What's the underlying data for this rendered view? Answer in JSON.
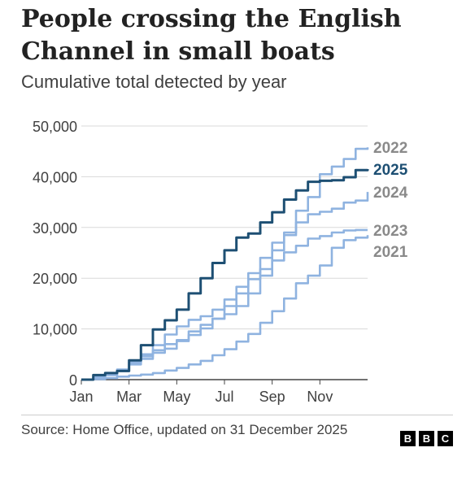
{
  "title": "People crossing the English Channel in small boats",
  "subtitle": "Cumulative total detected by year",
  "source": "Source: Home Office, updated on 31 December 2025",
  "logo": [
    "B",
    "B",
    "C"
  ],
  "colors": {
    "highlight": "#1d4f73",
    "other": "#8fb3e0",
    "other_label": "#8a8a8a",
    "grid": "#d9d9d9",
    "axis": "#444444"
  },
  "chart_data": {
    "type": "line",
    "title": "People crossing the English Channel in small boats",
    "subtitle": "Cumulative total detected by year",
    "xlabel": "",
    "ylabel": "",
    "x_ticks": [
      "Jan",
      "Mar",
      "May",
      "Jul",
      "Sep",
      "Nov"
    ],
    "y_ticks": [
      "0",
      "10,000",
      "20,000",
      "30,000",
      "40,000",
      "50,000"
    ],
    "ylim": [
      0,
      50000
    ],
    "xlim": [
      0,
      12
    ],
    "grid": true,
    "legend": "direct labels at line ends",
    "series": [
      {
        "name": "2021",
        "highlight": false,
        "x": [
          0,
          0.5,
          1,
          1.5,
          2,
          2.5,
          3,
          3.5,
          4,
          4.5,
          5,
          5.5,
          6,
          6.5,
          7,
          7.5,
          8,
          8.5,
          9,
          9.5,
          10,
          10.5,
          11,
          11.5,
          12
        ],
        "y": [
          0,
          100,
          300,
          600,
          800,
          1000,
          1300,
          1800,
          2300,
          3000,
          3700,
          4800,
          6000,
          7500,
          9000,
          11200,
          13500,
          16000,
          19000,
          20500,
          22500,
          26000,
          27500,
          28000,
          28500
        ]
      },
      {
        "name": "2022",
        "highlight": false,
        "x": [
          0,
          0.5,
          1,
          1.5,
          2,
          2.5,
          3,
          3.5,
          4,
          4.5,
          5,
          5.5,
          6,
          6.5,
          7,
          7.5,
          8,
          8.5,
          9,
          9.5,
          10,
          10.5,
          11,
          11.5,
          12
        ],
        "y": [
          0,
          600,
          1300,
          2000,
          3500,
          4600,
          5300,
          6100,
          7600,
          9500,
          10800,
          12000,
          12900,
          14500,
          17000,
          20500,
          25500,
          28500,
          33300,
          36000,
          40500,
          42000,
          43500,
          45500,
          45800
        ]
      },
      {
        "name": "2025",
        "highlight": true,
        "x": [
          0,
          0.5,
          1,
          1.5,
          2,
          2.5,
          3,
          3.5,
          4,
          4.5,
          5,
          5.5,
          6,
          6.5,
          7,
          7.5,
          8,
          8.5,
          9,
          9.5,
          10,
          10.5,
          11,
          11.5,
          12
        ],
        "y": [
          0,
          900,
          1300,
          1700,
          3800,
          6800,
          9900,
          11700,
          13800,
          17000,
          20000,
          23000,
          25500,
          28000,
          28800,
          31000,
          33000,
          35500,
          37300,
          39000,
          39200,
          39300,
          39900,
          41300,
          41500
        ]
      },
      {
        "name": "2024",
        "highlight": false,
        "x": [
          0,
          0.5,
          1,
          1.5,
          2,
          2.5,
          3,
          3.5,
          4,
          4.5,
          5,
          5.5,
          6,
          6.5,
          7,
          7.5,
          8,
          8.5,
          9,
          9.5,
          10,
          10.5,
          11,
          11.5,
          12
        ],
        "y": [
          0,
          400,
          900,
          1900,
          3400,
          5000,
          6800,
          8900,
          10500,
          11800,
          12500,
          13800,
          15800,
          18300,
          21000,
          24000,
          27000,
          29000,
          31000,
          32600,
          33100,
          33700,
          34900,
          35300,
          37000
        ]
      },
      {
        "name": "2023",
        "highlight": false,
        "x": [
          0,
          0.5,
          1,
          1.5,
          2,
          2.5,
          3,
          3.5,
          4,
          4.5,
          5,
          5.5,
          6,
          6.5,
          7,
          7.5,
          8,
          8.5,
          9,
          9.5,
          10,
          10.5,
          11,
          11.5,
          12
        ],
        "y": [
          0,
          500,
          1000,
          1800,
          3000,
          4100,
          5800,
          7000,
          7800,
          8800,
          10100,
          12000,
          14500,
          17000,
          19800,
          21800,
          23500,
          25100,
          26400,
          27800,
          28300,
          29000,
          29400,
          29500,
          29500
        ]
      }
    ]
  }
}
